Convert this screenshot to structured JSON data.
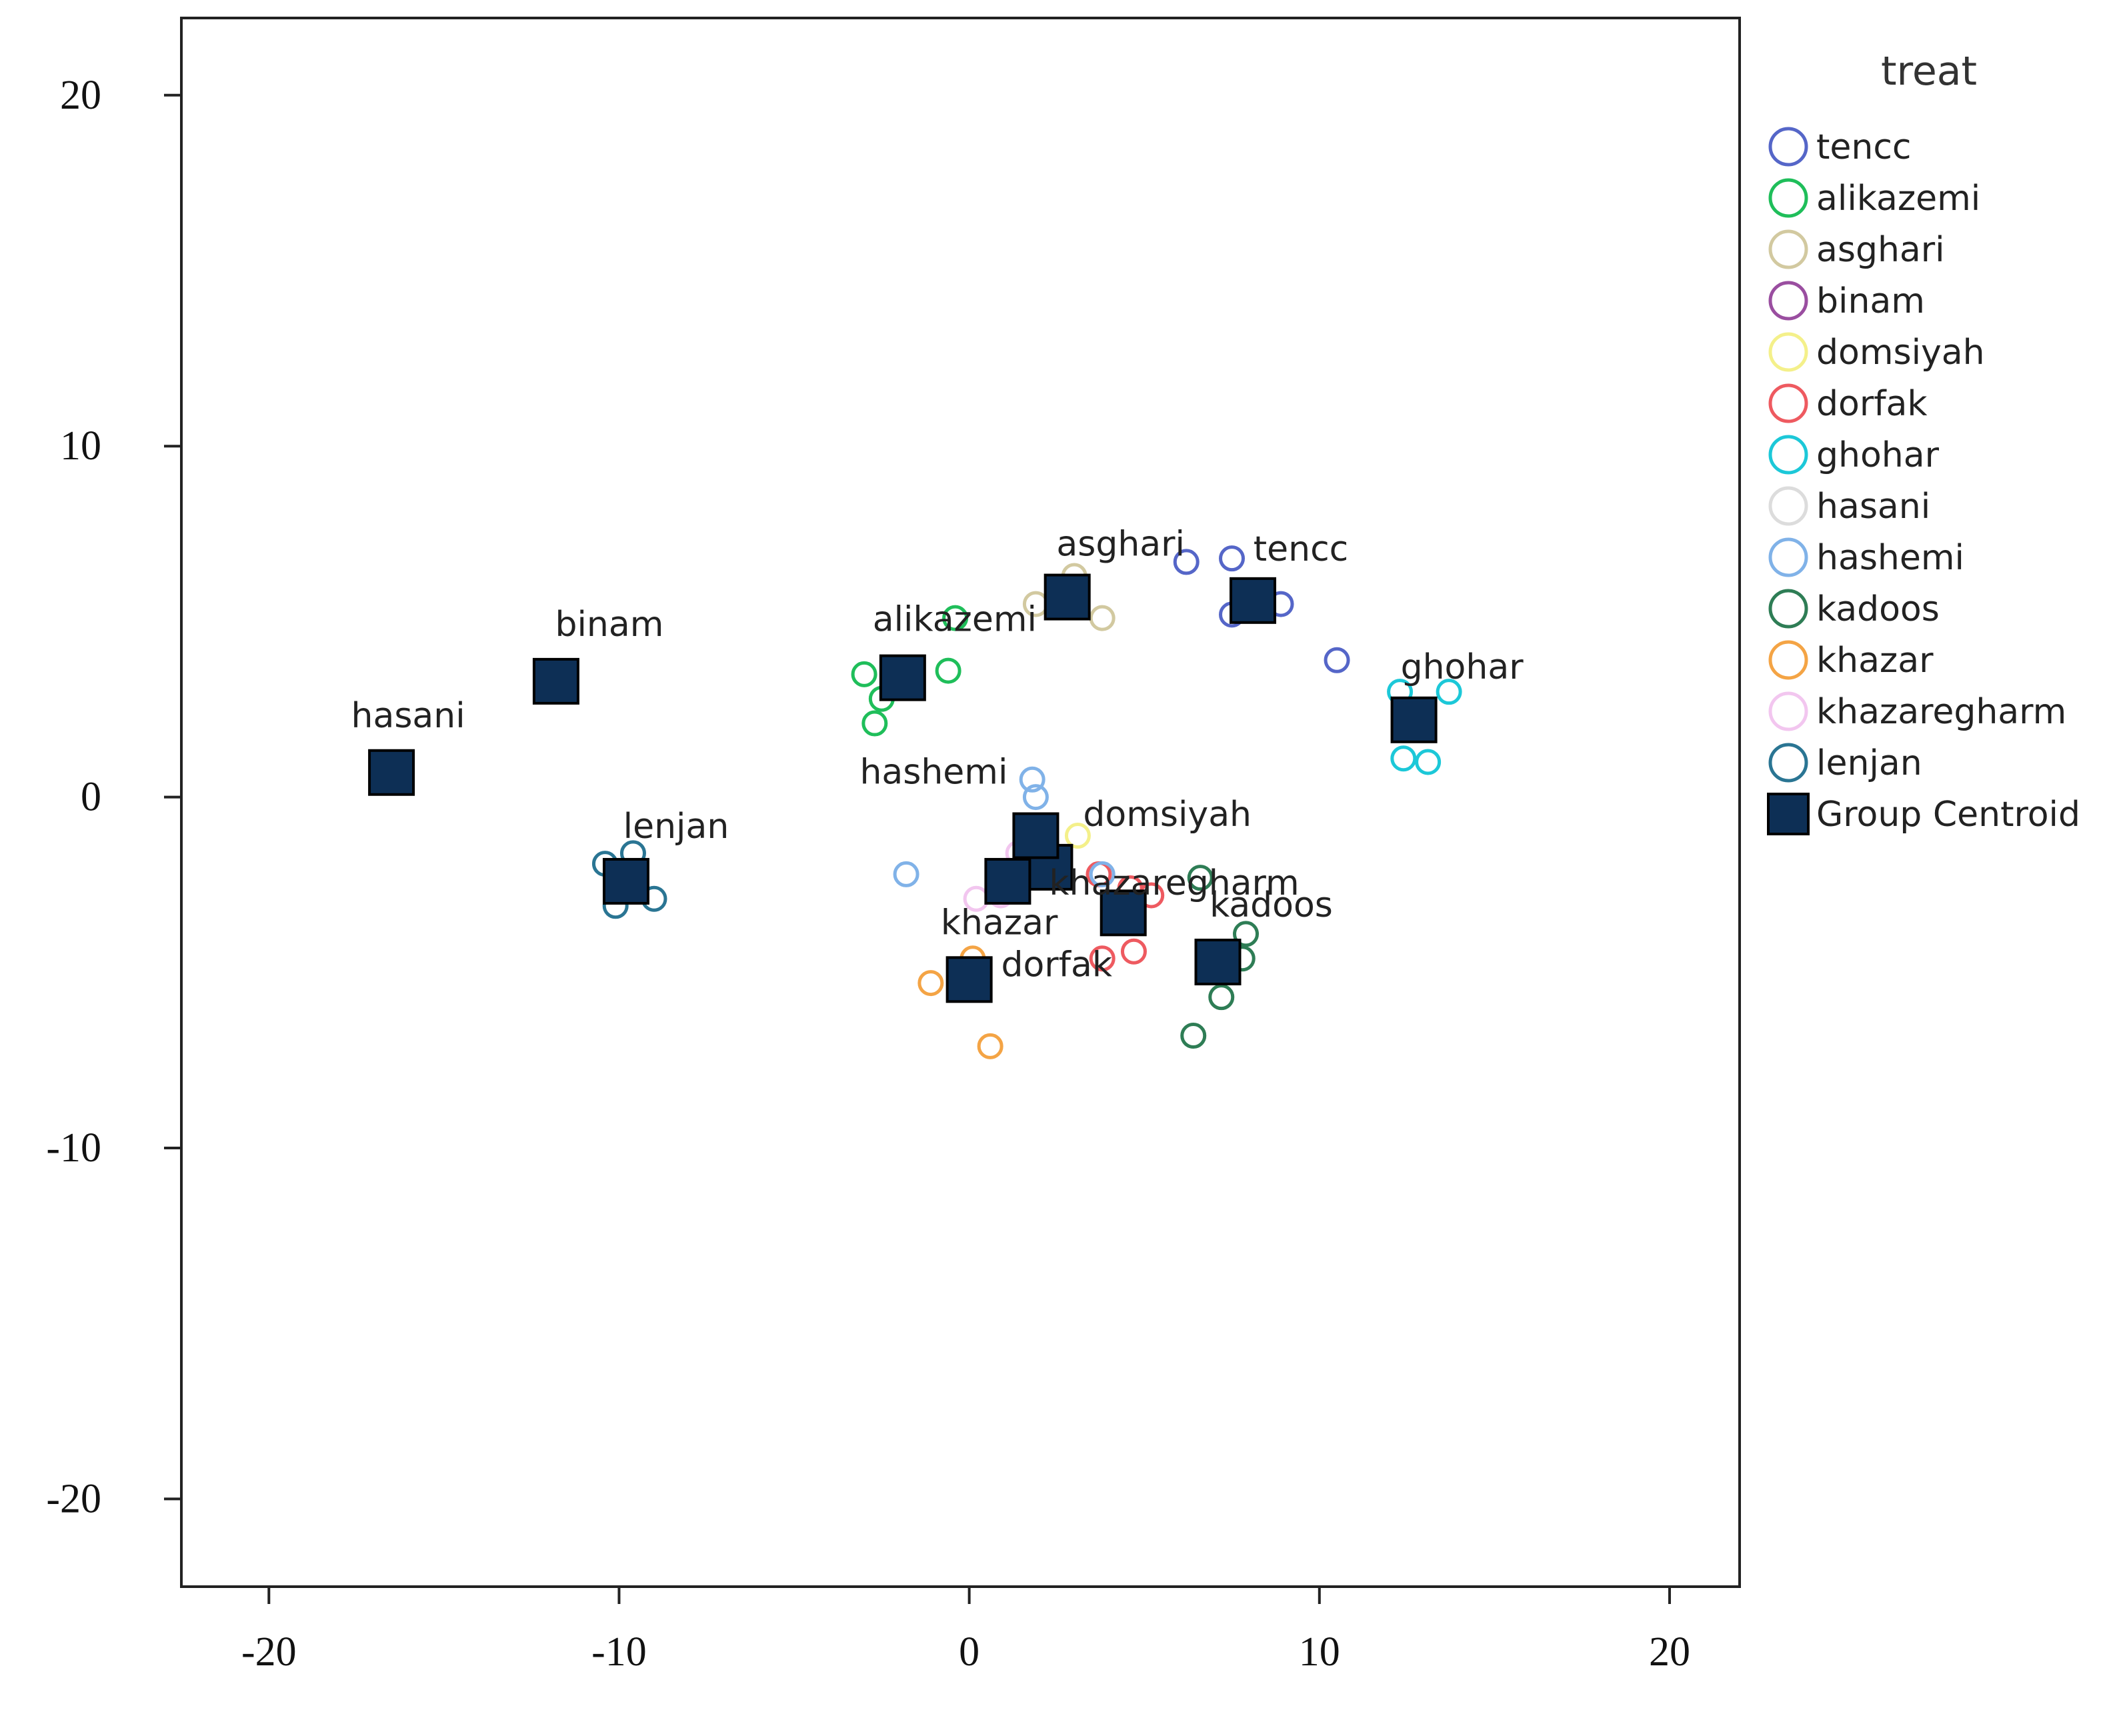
{
  "chart_data": {
    "type": "scatter",
    "title": "",
    "xlabel": "",
    "ylabel": "",
    "xlim": [
      -22.5,
      22
    ],
    "ylim": [
      -22.5,
      22.2
    ],
    "xticks": [
      -20,
      -10,
      0,
      10,
      20
    ],
    "yticks": [
      -20,
      -10,
      0,
      10,
      20
    ],
    "grid": false,
    "legend_title": "treat",
    "legend_position": "right",
    "centroid_color": "#0d2f55",
    "centroid_legend_label": "Group Centroid",
    "series": [
      {
        "name": "tencc",
        "color": "#5566c8",
        "centroid": [
          8.1,
          5.6
        ],
        "points": [
          [
            6.2,
            6.7
          ],
          [
            7.5,
            6.8
          ],
          [
            7.5,
            5.2
          ],
          [
            8.9,
            5.5
          ],
          [
            10.5,
            3.9
          ]
        ]
      },
      {
        "name": "alikazemi",
        "color": "#1fbe5a",
        "centroid": [
          -1.9,
          3.4
        ],
        "points": [
          [
            -0.4,
            5.1
          ],
          [
            -3.0,
            3.5
          ],
          [
            -0.6,
            3.6
          ],
          [
            -2.5,
            2.8
          ],
          [
            -2.7,
            2.1
          ]
        ]
      },
      {
        "name": "asghari",
        "color": "#d2c9a0",
        "centroid": [
          2.8,
          5.7
        ],
        "points": [
          [
            1.9,
            5.5
          ],
          [
            3.8,
            5.1
          ],
          [
            3.0,
            6.3
          ]
        ]
      },
      {
        "name": "binam",
        "color": "#9a4ea0",
        "centroid": [
          -11.8,
          3.3
        ],
        "points": []
      },
      {
        "name": "domsiyah",
        "color": "#f4f08a",
        "centroid": [
          2.3,
          -2.0
        ],
        "points": [
          [
            3.1,
            -1.1
          ],
          [
            2.6,
            -2.1
          ]
        ]
      },
      {
        "name": "dorfak",
        "color": "#ee5a60",
        "centroid": [
          4.4,
          -3.3
        ],
        "points": [
          [
            3.7,
            -2.2
          ],
          [
            4.6,
            -2.6
          ],
          [
            5.2,
            -2.8
          ],
          [
            3.8,
            -4.6
          ],
          [
            4.7,
            -4.4
          ]
        ]
      },
      {
        "name": "ghohar",
        "color": "#1cc8d8",
        "centroid": [
          12.7,
          2.2
        ],
        "points": [
          [
            12.3,
            3.0
          ],
          [
            13.7,
            3.0
          ],
          [
            12.4,
            1.1
          ],
          [
            13.1,
            1.0
          ]
        ]
      },
      {
        "name": "hasani",
        "color": "#dcdcdc",
        "centroid": [
          -16.5,
          0.7
        ],
        "points": []
      },
      {
        "name": "hashemi",
        "color": "#80b2e8",
        "centroid": [
          1.9,
          -1.1
        ],
        "points": [
          [
            1.8,
            0.5
          ],
          [
            1.9,
            0.0
          ],
          [
            -1.8,
            -2.2
          ],
          [
            3.8,
            -2.2
          ]
        ]
      },
      {
        "name": "kadoos",
        "color": "#2e7d55",
        "centroid": [
          7.1,
          -4.7
        ],
        "points": [
          [
            6.6,
            -2.3
          ],
          [
            7.9,
            -3.9
          ],
          [
            7.8,
            -4.6
          ],
          [
            7.2,
            -5.7
          ],
          [
            6.4,
            -6.8
          ]
        ]
      },
      {
        "name": "khazar",
        "color": "#f4a445",
        "centroid": [
          0.0,
          -5.2
        ],
        "points": [
          [
            -1.1,
            -5.3
          ],
          [
            0.1,
            -4.6
          ],
          [
            0.6,
            -7.1
          ]
        ]
      },
      {
        "name": "khazaregharm",
        "color": "#f2c6ef",
        "centroid": [
          1.1,
          -2.4
        ],
        "points": [
          [
            0.2,
            -2.9
          ],
          [
            1.4,
            -1.6
          ],
          [
            0.9,
            -2.8
          ]
        ]
      },
      {
        "name": "lenjan",
        "color": "#2a7593",
        "centroid": [
          -9.8,
          -2.4
        ],
        "points": [
          [
            -10.4,
            -1.9
          ],
          [
            -9.6,
            -1.6
          ],
          [
            -10.1,
            -3.1
          ],
          [
            -9.0,
            -2.9
          ]
        ]
      }
    ]
  }
}
